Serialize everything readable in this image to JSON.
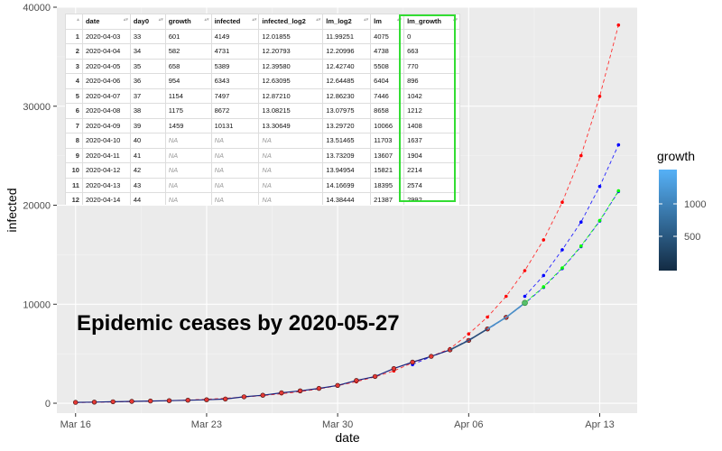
{
  "chart_data": {
    "type": "line",
    "xlabel": "date",
    "ylabel": "infected",
    "x_ticks": [
      "Mar 16",
      "Mar 23",
      "Mar 30",
      "Apr 06",
      "Apr 13"
    ],
    "y_ticks": [
      "0",
      "10000",
      "20000",
      "30000",
      "40000"
    ],
    "xlim": [
      "2020-03-15",
      "2020-04-15"
    ],
    "ylim": [
      -1000,
      40000
    ],
    "legend": {
      "title": "growth",
      "labels": [
        "1000",
        "500"
      ],
      "placement": "right",
      "color_low": "#132B43",
      "color_high": "#56B1F7"
    },
    "annotation": "Epidemic ceases by 2020-05-27",
    "series": [
      {
        "role": "observed",
        "line_color": "#1a237e",
        "point_color": "#e53935",
        "x": [
          "2020-03-16",
          "2020-03-17",
          "2020-03-18",
          "2020-03-19",
          "2020-03-20",
          "2020-03-21",
          "2020-03-22",
          "2020-03-23",
          "2020-03-24",
          "2020-03-25",
          "2020-03-26",
          "2020-03-27",
          "2020-03-28",
          "2020-03-29",
          "2020-03-30",
          "2020-03-31",
          "2020-04-01",
          "2020-04-02",
          "2020-04-03",
          "2020-04-04",
          "2020-04-05",
          "2020-04-06",
          "2020-04-07",
          "2020-04-08",
          "2020-04-09"
        ],
        "y": [
          80,
          110,
          150,
          180,
          220,
          260,
          300,
          350,
          420,
          650,
          800,
          1050,
          1250,
          1500,
          1800,
          2300,
          2700,
          3500,
          4149,
          4731,
          5389,
          6343,
          7497,
          8672,
          10131
        ]
      },
      {
        "role": "model",
        "line_color": "#ff3030",
        "point_color": "#ff0000",
        "x": [
          "2020-03-16",
          "2020-03-17",
          "2020-03-18",
          "2020-03-19",
          "2020-03-20",
          "2020-03-21",
          "2020-03-22",
          "2020-03-23",
          "2020-03-24",
          "2020-03-25",
          "2020-03-26",
          "2020-03-27",
          "2020-03-28",
          "2020-03-29",
          "2020-03-30",
          "2020-03-31",
          "2020-04-01",
          "2020-04-02",
          "2020-04-03",
          "2020-04-04",
          "2020-04-05",
          "2020-04-06",
          "2020-04-07",
          "2020-04-08",
          "2020-04-09",
          "2020-04-10",
          "2020-04-11",
          "2020-04-12",
          "2020-04-13",
          "2020-04-14"
        ],
        "y": [
          60,
          90,
          120,
          160,
          210,
          260,
          320,
          400,
          500,
          620,
          770,
          950,
          1170,
          1440,
          1770,
          2170,
          2660,
          3260,
          4075,
          4738,
          5508,
          7000,
          8700,
          10800,
          13400,
          16500,
          20300,
          25000,
          31000,
          38200
        ]
      },
      {
        "role": "forecast",
        "line_color": "#2222ff",
        "point_color": "#0000ff",
        "x": [
          "2020-04-03",
          "2020-04-04",
          "2020-04-05",
          "2020-04-06",
          "2020-04-07",
          "2020-04-08",
          "2020-04-09",
          "2020-04-10",
          "2020-04-11",
          "2020-04-12",
          "2020-04-13",
          "2020-04-14"
        ],
        "y": [
          3900,
          4700,
          5400,
          6404,
          7446,
          8658,
          10066,
          11703,
          13607,
          15821,
          18395,
          21387
        ]
      },
      {
        "role": "forecast-growth",
        "line_color": "#22ff22",
        "point_color": "#00ff00",
        "x": [
          "2020-04-06",
          "2020-04-07",
          "2020-04-08",
          "2020-04-09",
          "2020-04-10",
          "2020-04-11",
          "2020-04-12",
          "2020-04-13",
          "2020-04-14"
        ],
        "y": [
          6343,
          7497,
          8672,
          10131,
          11768,
          13672,
          15886,
          18460,
          21452
        ]
      },
      {
        "role": "forecast-steep",
        "line_color": "#2222ff",
        "point_color": "#0000ff",
        "x": [
          "2020-04-09",
          "2020-04-10",
          "2020-04-11",
          "2020-04-12",
          "2020-04-13",
          "2020-04-14"
        ],
        "y": [
          10800,
          12900,
          15500,
          18300,
          21900,
          26100
        ]
      }
    ]
  },
  "table": {
    "columns": [
      "date",
      "day0",
      "growth",
      "infected",
      "infected_log2",
      "lm_log2",
      "lm",
      "lm_growth"
    ],
    "rows": [
      [
        "1",
        "2020-04-03",
        "33",
        "601",
        "4149",
        "12.01855",
        "11.99251",
        "4075",
        "0"
      ],
      [
        "2",
        "2020-04-04",
        "34",
        "582",
        "4731",
        "12.20793",
        "12.20996",
        "4738",
        "663"
      ],
      [
        "3",
        "2020-04-05",
        "35",
        "658",
        "5389",
        "12.39580",
        "12.42740",
        "5508",
        "770"
      ],
      [
        "4",
        "2020-04-06",
        "36",
        "954",
        "6343",
        "12.63095",
        "12.64485",
        "6404",
        "896"
      ],
      [
        "5",
        "2020-04-07",
        "37",
        "1154",
        "7497",
        "12.87210",
        "12.86230",
        "7446",
        "1042"
      ],
      [
        "6",
        "2020-04-08",
        "38",
        "1175",
        "8672",
        "13.08215",
        "13.07975",
        "8658",
        "1212"
      ],
      [
        "7",
        "2020-04-09",
        "39",
        "1459",
        "10131",
        "13.30649",
        "13.29720",
        "10066",
        "1408"
      ],
      [
        "8",
        "2020-04-10",
        "40",
        "NA",
        "NA",
        "NA",
        "13.51465",
        "11703",
        "1637"
      ],
      [
        "9",
        "2020-04-11",
        "41",
        "NA",
        "NA",
        "NA",
        "13.73209",
        "13607",
        "1904"
      ],
      [
        "10",
        "2020-04-12",
        "42",
        "NA",
        "NA",
        "NA",
        "13.94954",
        "15821",
        "2214"
      ],
      [
        "11",
        "2020-04-13",
        "43",
        "NA",
        "NA",
        "NA",
        "14.16699",
        "18395",
        "2574"
      ],
      [
        "12",
        "2020-04-14",
        "44",
        "NA",
        "NA",
        "NA",
        "14.38444",
        "21387",
        "2992"
      ]
    ],
    "highlight_color": "#33dd33"
  }
}
